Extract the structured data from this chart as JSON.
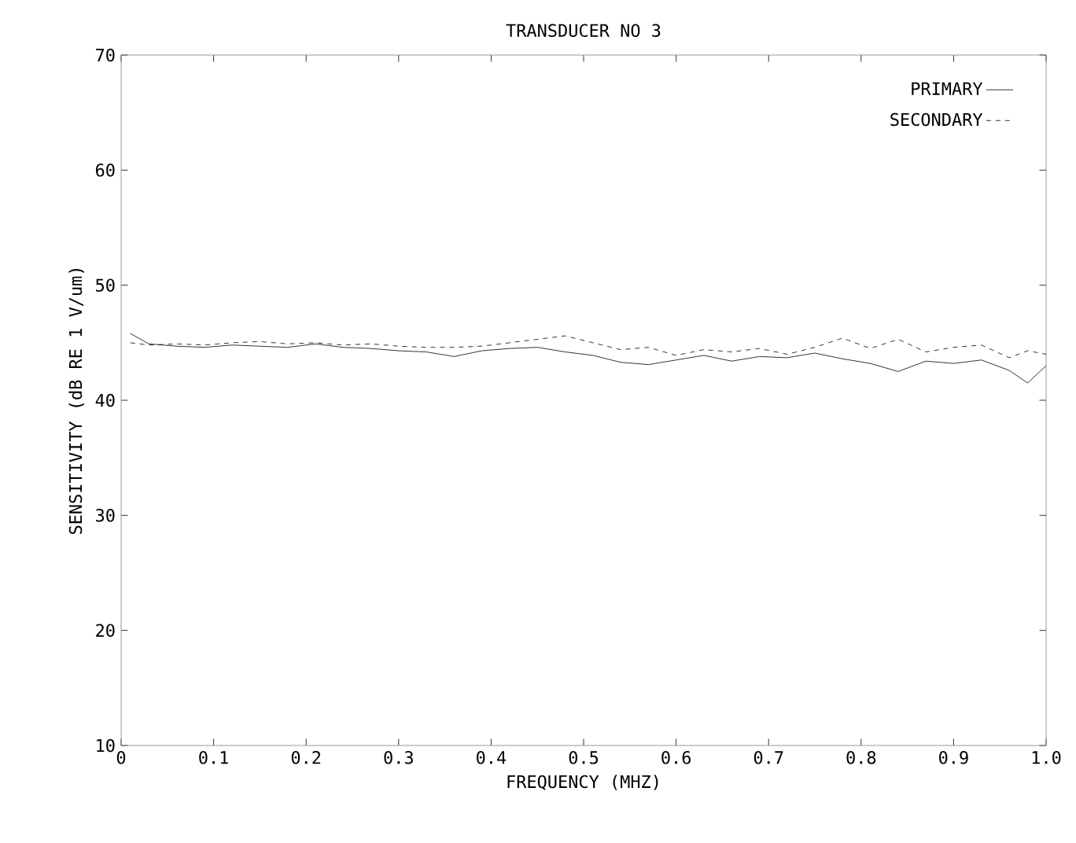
{
  "chart_data": {
    "type": "line",
    "title": "TRANSDUCER NO 3",
    "xlabel": "FREQUENCY (MHZ)",
    "ylabel": "SENSITIVITY (dB RE 1 V/um)",
    "xlim": [
      0,
      1.0
    ],
    "ylim": [
      10,
      70
    ],
    "xticks": [
      {
        "value": 0,
        "label": "0"
      },
      {
        "value": 0.1,
        "label": "0.1"
      },
      {
        "value": 0.2,
        "label": "0.2"
      },
      {
        "value": 0.3,
        "label": "0.3"
      },
      {
        "value": 0.4,
        "label": "0.4"
      },
      {
        "value": 0.5,
        "label": "0.5"
      },
      {
        "value": 0.6,
        "label": "0.6"
      },
      {
        "value": 0.7,
        "label": "0.7"
      },
      {
        "value": 0.8,
        "label": "0.8"
      },
      {
        "value": 0.9,
        "label": "0.9"
      },
      {
        "value": 1.0,
        "label": "1.0"
      }
    ],
    "yticks": [
      10,
      20,
      30,
      40,
      50,
      60,
      70
    ],
    "legend": "top right",
    "grid": false,
    "x": [
      0.01,
      0.03,
      0.06,
      0.09,
      0.12,
      0.15,
      0.18,
      0.21,
      0.24,
      0.27,
      0.3,
      0.33,
      0.36,
      0.39,
      0.42,
      0.45,
      0.48,
      0.51,
      0.54,
      0.57,
      0.6,
      0.63,
      0.66,
      0.69,
      0.72,
      0.75,
      0.78,
      0.81,
      0.84,
      0.87,
      0.9,
      0.93,
      0.96,
      0.98,
      1.0
    ],
    "series": [
      {
        "name": "PRIMARY",
        "color": "#000000",
        "line_style": "solid",
        "values": [
          45.8,
          44.9,
          44.7,
          44.6,
          44.8,
          44.7,
          44.6,
          44.9,
          44.6,
          44.5,
          44.3,
          44.2,
          43.8,
          44.3,
          44.5,
          44.6,
          44.2,
          43.9,
          43.3,
          43.1,
          43.5,
          43.9,
          43.4,
          43.8,
          43.7,
          44.1,
          43.6,
          43.2,
          42.5,
          43.4,
          43.2,
          43.5,
          42.6,
          41.5,
          43.0
        ]
      },
      {
        "name": "SECONDARY",
        "color": "#000000",
        "line_style": "dashed",
        "values": [
          45.0,
          44.8,
          44.9,
          44.8,
          45.0,
          45.1,
          44.9,
          45.0,
          44.8,
          44.9,
          44.7,
          44.6,
          44.6,
          44.7,
          45.0,
          45.3,
          45.6,
          45.0,
          44.4,
          44.6,
          43.9,
          44.4,
          44.2,
          44.5,
          44.0,
          44.6,
          45.4,
          44.5,
          45.3,
          44.2,
          44.6,
          44.8,
          43.7,
          44.3,
          44.0
        ]
      }
    ]
  }
}
